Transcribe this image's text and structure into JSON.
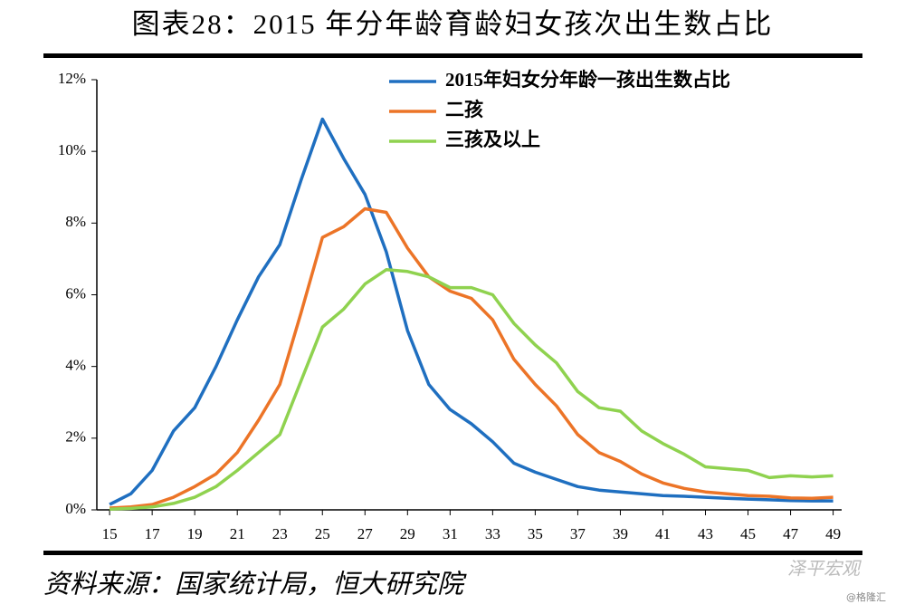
{
  "chart_data": {
    "type": "line",
    "title": "图表28：2015 年分年龄育龄妇女孩次出生数占比",
    "source": "资料来源：国家统计局，恒大研究院",
    "watermark": "泽平宏观",
    "credit": "@格隆汇",
    "x": [
      15,
      16,
      17,
      18,
      19,
      20,
      21,
      22,
      23,
      24,
      25,
      26,
      27,
      28,
      29,
      30,
      31,
      32,
      33,
      34,
      35,
      36,
      37,
      38,
      39,
      40,
      41,
      42,
      43,
      44,
      45,
      46,
      47,
      48,
      49
    ],
    "xlim": [
      14.4,
      49.4
    ],
    "xticks": [
      15,
      17,
      19,
      21,
      23,
      25,
      27,
      29,
      31,
      33,
      35,
      37,
      39,
      41,
      43,
      45,
      47,
      49
    ],
    "ylim": [
      0,
      12
    ],
    "yticks": [
      {
        "value": 0,
        "label": "0%"
      },
      {
        "value": 2,
        "label": "2%"
      },
      {
        "value": 4,
        "label": "4%"
      },
      {
        "value": 6,
        "label": "6%"
      },
      {
        "value": 8,
        "label": "8%"
      },
      {
        "value": 10,
        "label": "10%"
      },
      {
        "value": 12,
        "label": "12%"
      }
    ],
    "legend": "top-right",
    "series": [
      {
        "name": "2015年妇女分年龄一孩出生数占比",
        "color": "#1f6fc0",
        "values": [
          0.15,
          0.45,
          1.1,
          2.2,
          2.85,
          4.0,
          5.3,
          6.5,
          7.4,
          9.2,
          10.9,
          9.8,
          8.8,
          7.2,
          5.0,
          3.5,
          2.8,
          2.4,
          1.9,
          1.3,
          1.05,
          0.85,
          0.65,
          0.55,
          0.5,
          0.45,
          0.4,
          0.38,
          0.35,
          0.32,
          0.3,
          0.28,
          0.26,
          0.25,
          0.25
        ]
      },
      {
        "name": "二孩",
        "color": "#ec7427",
        "values": [
          0.05,
          0.08,
          0.15,
          0.35,
          0.65,
          1.0,
          1.6,
          2.5,
          3.5,
          5.5,
          7.6,
          7.9,
          8.4,
          8.3,
          7.3,
          6.5,
          6.1,
          5.9,
          5.3,
          4.2,
          3.5,
          2.9,
          2.1,
          1.6,
          1.35,
          1.0,
          0.75,
          0.6,
          0.5,
          0.45,
          0.4,
          0.38,
          0.33,
          0.32,
          0.35
        ]
      },
      {
        "name": "三孩及以上",
        "color": "#8fd24f",
        "values": [
          0.02,
          0.04,
          0.08,
          0.18,
          0.35,
          0.65,
          1.1,
          1.6,
          2.1,
          3.6,
          5.1,
          5.6,
          6.3,
          6.7,
          6.65,
          6.5,
          6.2,
          6.2,
          6.0,
          5.2,
          4.6,
          4.1,
          3.3,
          2.85,
          2.75,
          2.2,
          1.85,
          1.55,
          1.2,
          1.15,
          1.1,
          0.9,
          0.95,
          0.92,
          0.95
        ]
      }
    ]
  }
}
